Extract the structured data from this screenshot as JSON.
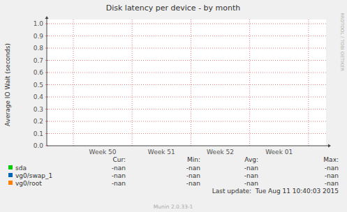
{
  "chart_data": {
    "type": "line",
    "title": "Disk latency per device - by month",
    "y_label": "Average IO Wait (seconds)",
    "categories": [
      "Week 50",
      "Week 51",
      "Week 52",
      "Week 01"
    ],
    "series": [
      {
        "name": "sda",
        "color": "#00cc00",
        "values": [
          null,
          null,
          null,
          null
        ],
        "cur": "-nan",
        "min": "-nan",
        "avg": "-nan",
        "max": "-nan"
      },
      {
        "name": "vg0/swap_1",
        "color": "#0066b3",
        "values": [
          null,
          null,
          null,
          null
        ],
        "cur": "-nan",
        "min": "-nan",
        "avg": "-nan",
        "max": "-nan"
      },
      {
        "name": "vg0/root",
        "color": "#ff8000",
        "values": [
          null,
          null,
          null,
          null
        ],
        "cur": "-nan",
        "min": "-nan",
        "avg": "-nan",
        "max": "-nan"
      }
    ],
    "legend_columns": [
      "Cur:",
      "Min:",
      "Avg:",
      "Max:"
    ],
    "ylim": [
      0,
      1
    ],
    "yticks": [
      {
        "value": 0,
        "label": "0.0"
      },
      0.1,
      0.2,
      0.3,
      0.4,
      0.5,
      0.6,
      0.7,
      0.8,
      0.9,
      {
        "value": 1,
        "label": "1.0"
      }
    ],
    "grid": true,
    "last_update": "Last update:  Tue Aug 11 10:40:03 2015",
    "footer": "Munin 2.0.33-1",
    "watermark": "RRDTOOL / TOBI OETIKER"
  }
}
